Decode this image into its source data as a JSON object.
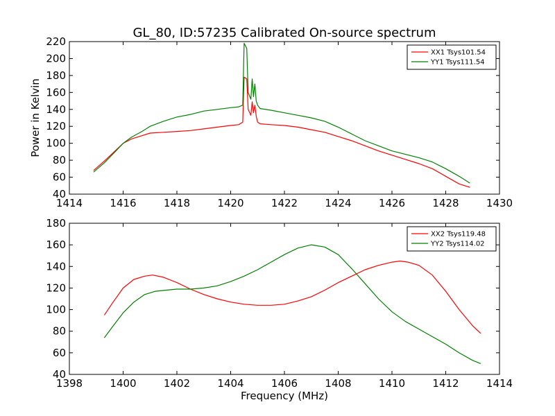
{
  "figure": {
    "title": "GL_80, ID:57235 Calibrated On-source spectrum",
    "xlabel": "Frequency (MHz)"
  },
  "chart_data": [
    {
      "type": "line",
      "ylabel": "Power in Kelvin",
      "xlabel": "",
      "xlim": [
        1414,
        1430
      ],
      "ylim": [
        40,
        220
      ],
      "xticks": [
        1414,
        1416,
        1418,
        1420,
        1422,
        1424,
        1426,
        1428,
        1430
      ],
      "yticks": [
        40,
        60,
        80,
        100,
        120,
        140,
        160,
        180,
        200,
        220
      ],
      "legend_position": "top-right",
      "series": [
        {
          "name": "XX1 Tsys101.54",
          "color": "#ff0000",
          "x": [
            1414.9,
            1415.3,
            1415.7,
            1416.0,
            1416.3,
            1416.7,
            1417.0,
            1417.5,
            1418.0,
            1418.5,
            1419.0,
            1419.5,
            1420.0,
            1420.3,
            1420.45,
            1420.5,
            1420.6,
            1420.65,
            1420.75,
            1420.8,
            1420.85,
            1420.9,
            1420.95,
            1421.0,
            1421.1,
            1421.5,
            1422.0,
            1422.5,
            1423.0,
            1423.5,
            1424.0,
            1424.5,
            1425.0,
            1425.5,
            1426.0,
            1426.5,
            1427.0,
            1427.5,
            1428.0,
            1428.5,
            1428.9
          ],
          "y": [
            68,
            79,
            91,
            100,
            105,
            109,
            112,
            113,
            114,
            115,
            117,
            119,
            121,
            122,
            125,
            178,
            176,
            140,
            133,
            149,
            136,
            145,
            132,
            125,
            123,
            122,
            121,
            119,
            116,
            113,
            108,
            103,
            97,
            91,
            86,
            81,
            76,
            70,
            61,
            52,
            48
          ]
        },
        {
          "name": "YY1 Tsys111.54",
          "color": "#008000",
          "x": [
            1414.9,
            1415.3,
            1415.7,
            1416.0,
            1416.3,
            1416.7,
            1417.0,
            1417.5,
            1418.0,
            1418.5,
            1419.0,
            1419.5,
            1420.0,
            1420.3,
            1420.45,
            1420.5,
            1420.6,
            1420.65,
            1420.75,
            1420.8,
            1420.85,
            1420.9,
            1420.95,
            1421.0,
            1421.1,
            1421.5,
            1422.0,
            1422.5,
            1423.0,
            1423.5,
            1424.0,
            1424.5,
            1425.0,
            1425.5,
            1426.0,
            1426.5,
            1427.0,
            1427.5,
            1428.0,
            1428.5,
            1428.9
          ],
          "y": [
            66,
            77,
            90,
            100,
            107,
            114,
            120,
            126,
            131,
            134,
            138,
            140,
            142,
            143,
            145,
            218,
            212,
            160,
            152,
            176,
            155,
            170,
            150,
            145,
            141,
            139,
            136,
            133,
            130,
            126,
            119,
            111,
            103,
            97,
            91,
            87,
            83,
            78,
            70,
            61,
            53
          ]
        }
      ]
    },
    {
      "type": "line",
      "ylabel": "",
      "xlabel": "Frequency (MHz)",
      "xlim": [
        1398,
        1414
      ],
      "ylim": [
        40,
        180
      ],
      "xticks": [
        1398,
        1400,
        1402,
        1404,
        1406,
        1408,
        1410,
        1412,
        1414
      ],
      "yticks": [
        40,
        60,
        80,
        100,
        120,
        140,
        160,
        180
      ],
      "legend_position": "top-right",
      "series": [
        {
          "name": "XX2 Tsys119.48",
          "color": "#ff0000",
          "x": [
            1399.3,
            1399.6,
            1400.0,
            1400.4,
            1400.8,
            1401.1,
            1401.5,
            1402.0,
            1402.5,
            1403.0,
            1403.5,
            1404.0,
            1404.5,
            1405.0,
            1405.5,
            1406.0,
            1406.5,
            1407.0,
            1407.5,
            1408.0,
            1408.5,
            1409.0,
            1409.5,
            1410.0,
            1410.3,
            1410.6,
            1411.0,
            1411.5,
            1412.0,
            1412.5,
            1413.0,
            1413.3
          ],
          "y": [
            95,
            106,
            120,
            128,
            131,
            132,
            130,
            125,
            119,
            114,
            110,
            107,
            105,
            104,
            104,
            105,
            108,
            112,
            118,
            125,
            131,
            137,
            141,
            144,
            145,
            144,
            141,
            132,
            117,
            100,
            85,
            78
          ]
        },
        {
          "name": "YY2 Tsys114.02",
          "color": "#008000",
          "x": [
            1399.3,
            1399.6,
            1400.0,
            1400.4,
            1400.8,
            1401.2,
            1401.6,
            1402.0,
            1402.5,
            1403.0,
            1403.5,
            1404.0,
            1404.5,
            1405.0,
            1405.5,
            1406.0,
            1406.5,
            1407.0,
            1407.5,
            1408.0,
            1408.5,
            1409.0,
            1409.5,
            1410.0,
            1410.5,
            1411.0,
            1411.5,
            1412.0,
            1412.5,
            1413.0,
            1413.3
          ],
          "y": [
            74,
            84,
            97,
            107,
            114,
            117,
            118,
            119,
            119,
            120,
            122,
            126,
            131,
            137,
            144,
            151,
            157,
            160,
            158,
            151,
            138,
            124,
            110,
            98,
            89,
            82,
            75,
            68,
            60,
            53,
            50
          ]
        }
      ]
    }
  ]
}
